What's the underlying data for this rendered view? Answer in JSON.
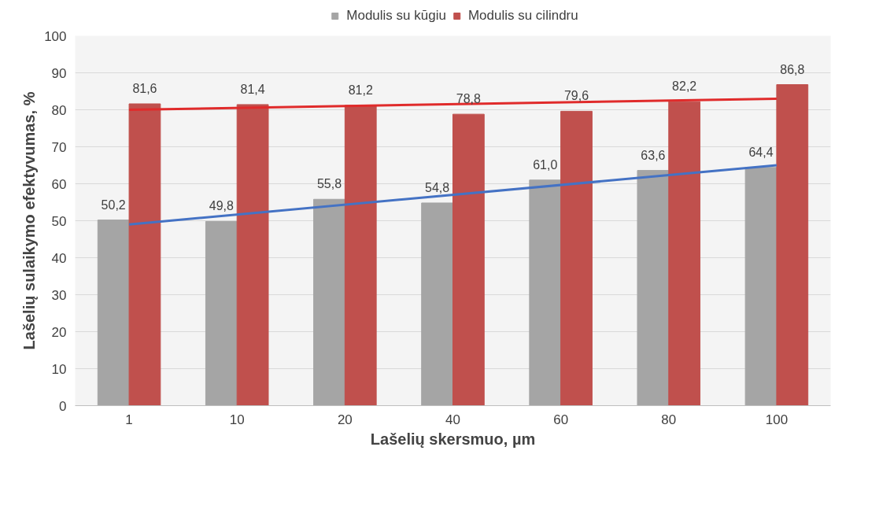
{
  "chart_data": {
    "type": "bar",
    "xlabel": "Lašelių skersmuo, µm",
    "ylabel": "Lašelių sulaikymo efektyvumas, %",
    "categories": [
      "1",
      "10",
      "20",
      "40",
      "60",
      "80",
      "100"
    ],
    "series": [
      {
        "name": "Modulis su kūgiu",
        "color": "#a5a5a5",
        "values": [
          50.2,
          49.8,
          55.8,
          54.8,
          61.0,
          63.6,
          64.4
        ],
        "value_labels": [
          "50,2",
          "49,8",
          "55,8",
          "54,8",
          "61,0",
          "63,6",
          "64,4"
        ]
      },
      {
        "name": "Modulis su cilindru",
        "color": "#c0504d",
        "values": [
          81.6,
          81.4,
          81.2,
          78.8,
          79.6,
          82.2,
          86.8
        ],
        "value_labels": [
          "81,6",
          "81,4",
          "81,2",
          "78,8",
          "79,6",
          "82,2",
          "86,8"
        ]
      },
      {
        "type": "line",
        "color": "#4472c4",
        "x": [
          "1",
          "100"
        ],
        "values": [
          49,
          65
        ]
      },
      {
        "type": "line",
        "color": "#e02b2b",
        "x": [
          "1",
          "100"
        ],
        "values": [
          80,
          83
        ]
      }
    ],
    "ylim": [
      0,
      100
    ],
    "yticks": [
      0,
      10,
      20,
      30,
      40,
      50,
      60,
      70,
      80,
      90,
      100
    ],
    "grid": "y",
    "legend": "top"
  }
}
